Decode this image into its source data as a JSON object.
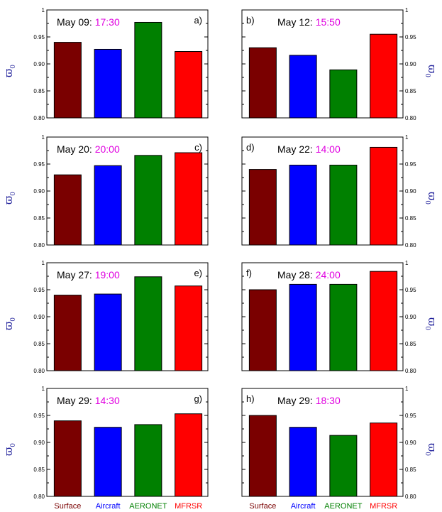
{
  "chart_data": [
    {
      "type": "bar",
      "panel": "a)",
      "date": "May 09",
      "time": "17:30",
      "ylabel": "ϖ",
      "ylabel_sub": "0",
      "categories": [
        "Surface",
        "Aircraft",
        "AERONET",
        "MFRSR"
      ],
      "values": [
        0.94,
        0.927,
        0.977,
        0.923
      ],
      "ylim": [
        0.8,
        1.0
      ],
      "yticks": [
        "0.80",
        "0.85",
        "0.90",
        "0.95",
        "1"
      ],
      "ylabel_side": "left"
    },
    {
      "type": "bar",
      "panel": "b)",
      "date": "May 12",
      "time": "15:50",
      "ylabel": "ϖ",
      "ylabel_sub": "0",
      "categories": [
        "Surface",
        "Aircraft",
        "AERONET",
        "MFRSR"
      ],
      "values": [
        0.93,
        0.916,
        0.889,
        0.955
      ],
      "ylim": [
        0.8,
        1.0
      ],
      "yticks": [
        "0.80",
        "0.85",
        "0.90",
        "0.95",
        "1"
      ],
      "ylabel_side": "right"
    },
    {
      "type": "bar",
      "panel": "c)",
      "date": "May 20",
      "time": "20:00",
      "ylabel": "ϖ",
      "ylabel_sub": "0",
      "categories": [
        "Surface",
        "Aircraft",
        "AERONET",
        "MFRSR"
      ],
      "values": [
        0.93,
        0.947,
        0.966,
        0.971
      ],
      "ylim": [
        0.8,
        1.0
      ],
      "yticks": [
        "0.80",
        "0.85",
        "0.90",
        "0.95",
        "1"
      ],
      "ylabel_side": "left"
    },
    {
      "type": "bar",
      "panel": "d)",
      "date": "May 22",
      "time": "14:00",
      "ylabel": "ϖ",
      "ylabel_sub": "0",
      "categories": [
        "Surface",
        "Aircraft",
        "AERONET",
        "MFRSR"
      ],
      "values": [
        0.94,
        0.948,
        0.948,
        0.981
      ],
      "ylim": [
        0.8,
        1.0
      ],
      "yticks": [
        "0.80",
        "0.85",
        "0.90",
        "0.95",
        "1"
      ],
      "ylabel_side": "right"
    },
    {
      "type": "bar",
      "panel": "e)",
      "date": "May 27",
      "time": "19:00",
      "ylabel": "ϖ",
      "ylabel_sub": "0",
      "categories": [
        "Surface",
        "Aircraft",
        "AERONET",
        "MFRSR"
      ],
      "values": [
        0.94,
        0.942,
        0.974,
        0.957
      ],
      "ylim": [
        0.8,
        1.0
      ],
      "yticks": [
        "0.80",
        "0.85",
        "0.90",
        "0.95",
        "1"
      ],
      "ylabel_side": "left"
    },
    {
      "type": "bar",
      "panel": "f)",
      "date": "May 28",
      "time": "24:00",
      "ylabel": "ϖ",
      "ylabel_sub": "0",
      "categories": [
        "Surface",
        "Aircraft",
        "AERONET",
        "MFRSR"
      ],
      "values": [
        0.95,
        0.96,
        0.96,
        0.984
      ],
      "ylim": [
        0.8,
        1.0
      ],
      "yticks": [
        "0.80",
        "0.85",
        "0.90",
        "0.95",
        "1"
      ],
      "ylabel_side": "right"
    },
    {
      "type": "bar",
      "panel": "g)",
      "date": "May 29",
      "time": "14:30",
      "ylabel": "ϖ",
      "ylabel_sub": "0",
      "categories": [
        "Surface",
        "Aircraft",
        "AERONET",
        "MFRSR"
      ],
      "values": [
        0.94,
        0.928,
        0.933,
        0.953
      ],
      "ylim": [
        0.8,
        1.0
      ],
      "yticks": [
        "0.80",
        "0.85",
        "0.90",
        "0.95",
        "1"
      ],
      "ylabel_side": "left"
    },
    {
      "type": "bar",
      "panel": "h)",
      "date": "May 29",
      "time": "18:30",
      "ylabel": "ϖ",
      "ylabel_sub": "0",
      "categories": [
        "Surface",
        "Aircraft",
        "AERONET",
        "MFRSR"
      ],
      "values": [
        0.95,
        0.928,
        0.913,
        0.936
      ],
      "ylim": [
        0.8,
        1.0
      ],
      "yticks": [
        "0.80",
        "0.85",
        "0.90",
        "0.95",
        "1"
      ],
      "ylabel_side": "right"
    }
  ],
  "colors": {
    "Surface": "#7a0000",
    "Aircraft": "#0000ff",
    "AERONET": "#008000",
    "MFRSR": "#ff0000",
    "time": "#e000e0",
    "ylabel": "#1f1f9a"
  },
  "x_labels_bottom": [
    {
      "text": "Surface",
      "color": "#7a0000"
    },
    {
      "text": "Aircraft",
      "color": "#0000ff"
    },
    {
      "text": "AERONET",
      "color": "#008000"
    },
    {
      "text": "MFRSR",
      "color": "#ff0000"
    }
  ]
}
